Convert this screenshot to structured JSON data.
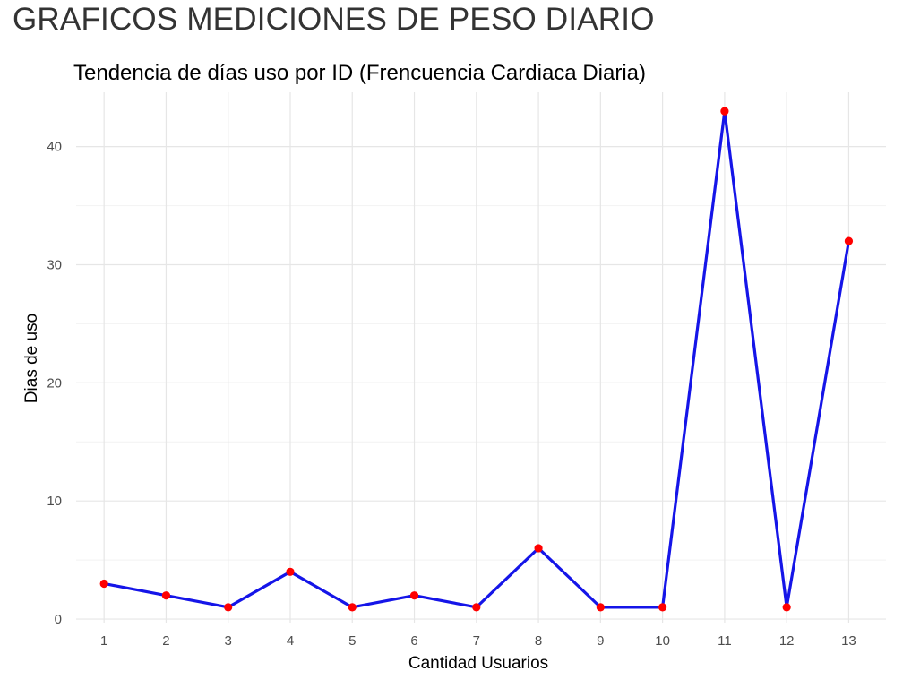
{
  "page": {
    "header": "GRAFICOS MEDICIONES DE PESO DIARIO"
  },
  "chart_data": {
    "type": "line",
    "title": "Tendencia de días uso por ID (Frencuencia Cardiaca Diaria)",
    "xlabel": "Cantidad Usuarios",
    "ylabel": "Dias de uso",
    "x": [
      1,
      2,
      3,
      4,
      5,
      6,
      7,
      8,
      9,
      10,
      11,
      12,
      13
    ],
    "xticks": [
      "1",
      "2",
      "3",
      "4",
      "5",
      "6",
      "7",
      "8",
      "9",
      "10",
      "11",
      "12",
      "13"
    ],
    "yticks": [
      "0",
      "10",
      "20",
      "30",
      "40"
    ],
    "series": [
      {
        "values": [
          3,
          2,
          1,
          4,
          1,
          2,
          1,
          6,
          1,
          1,
          43,
          1,
          32
        ],
        "line_color": "#1515e8",
        "point_color": "#ff0000"
      }
    ],
    "xlim": [
      0.55,
      13.6
    ],
    "ylim": [
      -0.3,
      44.6
    ],
    "grid": true,
    "legend": "none"
  }
}
